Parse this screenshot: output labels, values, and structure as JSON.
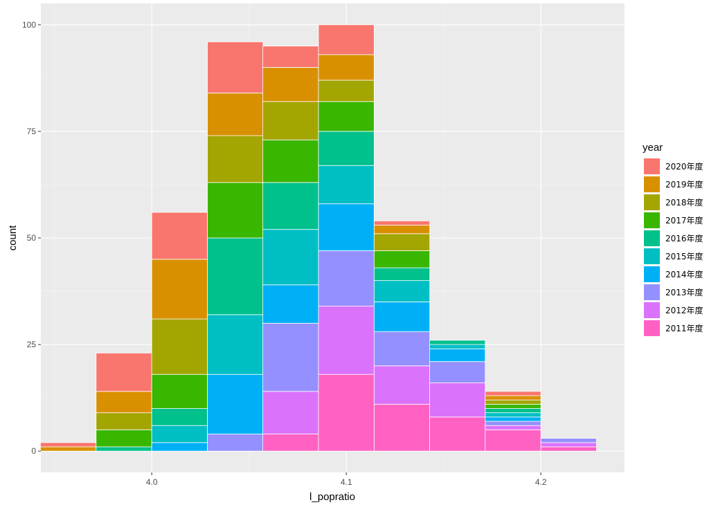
{
  "chart_data": {
    "type": "bar",
    "stacked": true,
    "xlabel": "l_popratio",
    "ylabel": "count",
    "xlim": [
      3.943,
      4.243
    ],
    "ylim": [
      -5,
      105
    ],
    "x_ticks": [
      4.0,
      4.1,
      4.2
    ],
    "x_tick_labels": [
      "4.0",
      "4.1",
      "4.2"
    ],
    "y_ticks": [
      0,
      25,
      50,
      75,
      100
    ],
    "y_tick_labels": [
      "0",
      "25",
      "50",
      "75",
      "100"
    ],
    "bin_width": 0.0286,
    "bins": [
      3.9571,
      3.9857,
      4.0143,
      4.0429,
      4.0714,
      4.1,
      4.1286,
      4.1571,
      4.1857,
      4.2143
    ],
    "grid": true,
    "legend_position": "right",
    "legend": {
      "title": "year",
      "entries": [
        "2020年度",
        "2019年度",
        "2018年度",
        "2017年度",
        "2016年度",
        "2015年度",
        "2014年度",
        "2013年度",
        "2012年度",
        "2011年度"
      ]
    },
    "series": [
      {
        "name": "2011年度",
        "color": "#FF61C3",
        "values": [
          0,
          0,
          0,
          0,
          4,
          18,
          11,
          8,
          5,
          1
        ]
      },
      {
        "name": "2012年度",
        "color": "#DB72FB",
        "values": [
          0,
          0,
          0,
          0,
          10,
          16,
          9,
          8,
          1,
          1
        ]
      },
      {
        "name": "2013年度",
        "color": "#9590FF",
        "values": [
          0,
          0,
          0,
          4,
          16,
          13,
          8,
          5,
          1,
          1
        ]
      },
      {
        "name": "2014年度",
        "color": "#00B0F6",
        "values": [
          0,
          0,
          2,
          14,
          9,
          11,
          7,
          3,
          1,
          0
        ]
      },
      {
        "name": "2015年度",
        "color": "#00BFC4",
        "values": [
          0,
          0,
          4,
          14,
          13,
          9,
          5,
          1,
          1,
          0
        ]
      },
      {
        "name": "2016年度",
        "color": "#00C08B",
        "values": [
          0,
          1,
          4,
          18,
          11,
          8,
          3,
          1,
          1,
          0
        ]
      },
      {
        "name": "2017年度",
        "color": "#39B600",
        "values": [
          0,
          4,
          8,
          13,
          10,
          7,
          4,
          0,
          1,
          0
        ]
      },
      {
        "name": "2018年度",
        "color": "#A3A500",
        "values": [
          0,
          4,
          13,
          11,
          9,
          5,
          4,
          0,
          1,
          0
        ]
      },
      {
        "name": "2019年度",
        "color": "#D89000",
        "values": [
          1,
          5,
          14,
          10,
          8,
          6,
          2,
          0,
          1,
          0
        ]
      },
      {
        "name": "2020年度",
        "color": "#F8766D",
        "values": [
          1,
          9,
          11,
          12,
          5,
          7,
          1,
          0,
          1,
          0
        ]
      }
    ]
  },
  "colors": {
    "panel_background": "#EBEBEB",
    "grid_major": "#FFFFFF",
    "grid_minor": "#F5F5F5",
    "bar_outline": "#FFFFFF"
  }
}
